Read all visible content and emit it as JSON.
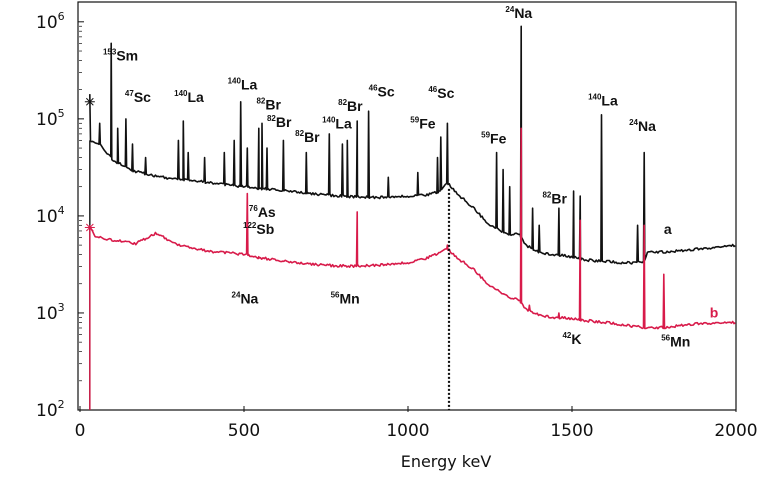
{
  "chart_data": {
    "type": "line",
    "title": "",
    "xlabel": "Energy keV",
    "ylabel": "",
    "xlim": [
      0,
      2000
    ],
    "ylim": [
      100,
      1600000
    ],
    "yscale": "log",
    "x_ticks": [
      {
        "value": 0,
        "label": "0"
      },
      {
        "value": 500,
        "label": "500"
      },
      {
        "value": 1000,
        "label": "1000"
      },
      {
        "value": 1500,
        "label": "1500"
      },
      {
        "value": 2000,
        "label": "2000"
      }
    ],
    "y_ticks": [
      {
        "value": 100,
        "base": "10",
        "exp": "2"
      },
      {
        "value": 1000,
        "base": "10",
        "exp": "3"
      },
      {
        "value": 10000,
        "base": "10",
        "exp": "4"
      },
      {
        "value": 100000,
        "base": "10",
        "exp": "5"
      },
      {
        "value": 1000000,
        "base": "10",
        "exp": "6"
      }
    ],
    "series": [
      {
        "name": "a",
        "color": "#111111",
        "label_at": [
          1780,
          6500
        ],
        "baseline": [
          [
            30,
            60000
          ],
          [
            60,
            55000
          ],
          [
            100,
            38000
          ],
          [
            150,
            30000
          ],
          [
            200,
            27000
          ],
          [
            250,
            25000
          ],
          [
            300,
            24000
          ],
          [
            400,
            22000
          ],
          [
            500,
            20000
          ],
          [
            600,
            18500
          ],
          [
            700,
            17000
          ],
          [
            800,
            16000
          ],
          [
            900,
            15500
          ],
          [
            1000,
            16000
          ],
          [
            1060,
            16500
          ],
          [
            1100,
            18000
          ],
          [
            1120,
            22000
          ],
          [
            1150,
            17000
          ],
          [
            1200,
            12000
          ],
          [
            1250,
            8000
          ],
          [
            1300,
            6500
          ],
          [
            1340,
            6500
          ],
          [
            1360,
            5000
          ],
          [
            1400,
            4200
          ],
          [
            1450,
            4000
          ],
          [
            1500,
            3800
          ],
          [
            1550,
            3500
          ],
          [
            1600,
            3400
          ],
          [
            1650,
            3300
          ],
          [
            1700,
            3300
          ],
          [
            1720,
            3400
          ],
          [
            1730,
            4200
          ],
          [
            1800,
            4300
          ],
          [
            1900,
            4600
          ],
          [
            2000,
            5000
          ]
        ],
        "peaks": [
          [
            30,
            180000
          ],
          [
            60,
            90000
          ],
          [
            95,
            600000
          ],
          [
            115,
            80000
          ],
          [
            140,
            100000
          ],
          [
            160,
            55000
          ],
          [
            200,
            40000
          ],
          [
            300,
            60000
          ],
          [
            315,
            95000
          ],
          [
            330,
            45000
          ],
          [
            380,
            40000
          ],
          [
            440,
            45000
          ],
          [
            470,
            60000
          ],
          [
            490,
            150000
          ],
          [
            510,
            50000
          ],
          [
            545,
            80000
          ],
          [
            555,
            90000
          ],
          [
            570,
            50000
          ],
          [
            620,
            60000
          ],
          [
            690,
            45000
          ],
          [
            760,
            70000
          ],
          [
            800,
            55000
          ],
          [
            815,
            60000
          ],
          [
            845,
            95000
          ],
          [
            880,
            120000
          ],
          [
            940,
            25000
          ],
          [
            1030,
            28000
          ],
          [
            1090,
            40000
          ],
          [
            1100,
            65000
          ],
          [
            1120,
            90000
          ],
          [
            1270,
            45000
          ],
          [
            1290,
            30000
          ],
          [
            1310,
            20000
          ],
          [
            1345,
            900000
          ],
          [
            1380,
            12000
          ],
          [
            1400,
            8000
          ],
          [
            1460,
            12000
          ],
          [
            1505,
            18000
          ],
          [
            1525,
            16000
          ],
          [
            1590,
            110000
          ],
          [
            1700,
            8000
          ],
          [
            1720,
            45000
          ]
        ]
      },
      {
        "name": "b",
        "color": "#d81b4a",
        "label_at": [
          1920,
          900
        ],
        "baseline": [
          [
            30,
            8000
          ],
          [
            45,
            6200
          ],
          [
            80,
            5800
          ],
          [
            120,
            5500
          ],
          [
            170,
            5200
          ],
          [
            200,
            5800
          ],
          [
            230,
            6600
          ],
          [
            260,
            5900
          ],
          [
            300,
            5000
          ],
          [
            350,
            4600
          ],
          [
            400,
            4300
          ],
          [
            450,
            4200
          ],
          [
            500,
            4000
          ],
          [
            550,
            3700
          ],
          [
            600,
            3500
          ],
          [
            650,
            3300
          ],
          [
            700,
            3200
          ],
          [
            750,
            3100
          ],
          [
            800,
            3050
          ],
          [
            850,
            3050
          ],
          [
            900,
            3100
          ],
          [
            950,
            3200
          ],
          [
            1000,
            3300
          ],
          [
            1050,
            3600
          ],
          [
            1100,
            4200
          ],
          [
            1120,
            4600
          ],
          [
            1150,
            3700
          ],
          [
            1200,
            2800
          ],
          [
            1250,
            1900
          ],
          [
            1300,
            1500
          ],
          [
            1340,
            1350
          ],
          [
            1360,
            1100
          ],
          [
            1400,
            950
          ],
          [
            1450,
            900
          ],
          [
            1500,
            880
          ],
          [
            1550,
            830
          ],
          [
            1600,
            800
          ],
          [
            1650,
            760
          ],
          [
            1700,
            720
          ],
          [
            1720,
            700
          ],
          [
            1750,
            700
          ],
          [
            1800,
            720
          ],
          [
            1850,
            760
          ],
          [
            1900,
            780
          ],
          [
            2000,
            800
          ]
        ],
        "peaks": [
          [
            20,
            8800
          ],
          [
            30,
            7500
          ],
          [
            510,
            17000
          ],
          [
            545,
            3800
          ],
          [
            845,
            11000
          ],
          [
            1120,
            5000
          ],
          [
            1345,
            80000
          ],
          [
            1370,
            1200
          ],
          [
            1460,
            1000
          ],
          [
            1525,
            9000
          ],
          [
            1720,
            8000
          ],
          [
            1780,
            2500
          ]
        ]
      }
    ],
    "peak_labels": [
      {
        "iso": "153",
        "el": "Sm",
        "x": 70,
        "y": 400000
      },
      {
        "iso": "47",
        "el": "Sc",
        "x": 137,
        "y": 150000
      },
      {
        "iso": "140",
        "el": "La",
        "x": 287,
        "y": 150000
      },
      {
        "iso": "140",
        "el": "La",
        "x": 450,
        "y": 200000
      },
      {
        "iso": "82",
        "el": "Br",
        "x": 538,
        "y": 125000
      },
      {
        "iso": "82",
        "el": "Br",
        "x": 570,
        "y": 82000
      },
      {
        "iso": "82",
        "el": "Br",
        "x": 656,
        "y": 58000
      },
      {
        "iso": "82",
        "el": "Br",
        "x": 787,
        "y": 120000
      },
      {
        "iso": "140",
        "el": "La",
        "x": 738,
        "y": 80000
      },
      {
        "iso": "46",
        "el": "Sc",
        "x": 880,
        "y": 170000
      },
      {
        "iso": "59",
        "el": "Fe",
        "x": 1007,
        "y": 80000
      },
      {
        "iso": "46",
        "el": "Sc",
        "x": 1062,
        "y": 165000
      },
      {
        "iso": "24",
        "el": "Na",
        "x": 1297,
        "y": 1100000
      },
      {
        "iso": "59",
        "el": "Fe",
        "x": 1223,
        "y": 56000
      },
      {
        "iso": "140",
        "el": "La",
        "x": 1549,
        "y": 138000
      },
      {
        "iso": "24",
        "el": "Na",
        "x": 1674,
        "y": 75000
      },
      {
        "iso": "82",
        "el": "Br",
        "x": 1410,
        "y": 13500
      },
      {
        "iso": "76",
        "el": "As",
        "x": 515,
        "y": 9800
      },
      {
        "iso": "122",
        "el": "Sb",
        "x": 497,
        "y": 6500
      },
      {
        "iso": "24",
        "el": "Na",
        "x": 462,
        "y": 1250
      },
      {
        "iso": "56",
        "el": "Mn",
        "x": 764,
        "y": 1250
      },
      {
        "iso": "42",
        "el": "K",
        "x": 1471,
        "y": 480
      },
      {
        "iso": "56",
        "el": "Mn",
        "x": 1772,
        "y": 450
      }
    ],
    "markers": [
      {
        "x": 30,
        "y": 150000,
        "color": "#111111"
      },
      {
        "x": 30,
        "y": 7600,
        "color": "#d81b4a"
      }
    ],
    "vertical_dotted_line": {
      "x": 1125,
      "y_from": 100,
      "y_to": 19000
    }
  }
}
